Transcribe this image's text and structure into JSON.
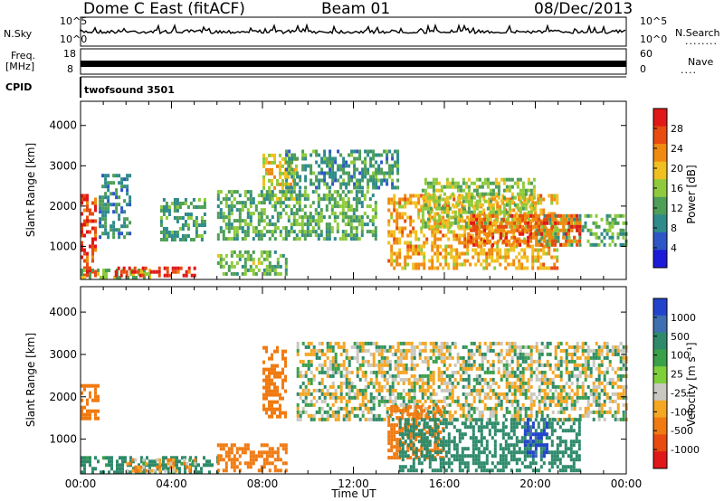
{
  "header": {
    "station": "Dome C East (fitACF)",
    "beam": "Beam 01",
    "date": "08/Dec/2013"
  },
  "strips": {
    "nsky_label": "N.Sky",
    "nsky_ticks": [
      "10^5",
      "10^0"
    ],
    "nsearch_label": "N.Search",
    "nsearch_ticks": [
      "10^5",
      "10^0"
    ],
    "freq_label_1": "Freq.",
    "freq_label_2": "[MHz]",
    "freq_ticks": [
      "18",
      "8"
    ],
    "nave_label": "Nave",
    "nave_ticks": [
      "60",
      "0"
    ],
    "cpid_label": "CPID",
    "cpid_value": "twofsound 3501"
  },
  "chart_data": [
    {
      "type": "heatmap",
      "name": "power",
      "ylabel": "Slant Range [km]",
      "xlabel": "Time UT",
      "x_ticks": [
        "00:00",
        "04:00",
        "08:00",
        "12:00",
        "16:00",
        "20:00",
        "00:00"
      ],
      "y_ticks": [
        "1000",
        "2000",
        "3000",
        "4000"
      ],
      "ylim": [
        180,
        4600
      ],
      "xlim_hours": [
        0,
        24
      ],
      "colorbar": {
        "label": "Power [dB]",
        "ticks": [
          "4",
          "8",
          "12",
          "16",
          "20",
          "24",
          "28"
        ],
        "range": [
          0,
          30
        ],
        "colors": [
          "#1b1bd8",
          "#2e56c6",
          "#2f8a8a",
          "#4e9e58",
          "#8fca3c",
          "#f0c020",
          "#f08a10",
          "#e84a10",
          "#e01818"
        ]
      },
      "regions": [
        {
          "t0": 0.0,
          "t1": 0.6,
          "r0": 300,
          "r1": 2300,
          "value": 26
        },
        {
          "t0": 0.0,
          "t1": 3.0,
          "r0": 250,
          "r1": 450,
          "value": 14
        },
        {
          "t0": 1.5,
          "t1": 5.0,
          "r0": 250,
          "r1": 500,
          "value": 27
        },
        {
          "t0": 0.8,
          "t1": 2.2,
          "r0": 1200,
          "r1": 2800,
          "value": 9
        },
        {
          "t0": 3.5,
          "t1": 5.5,
          "r0": 1200,
          "r1": 2200,
          "value": 11
        },
        {
          "t0": 6.0,
          "t1": 9.0,
          "r0": 300,
          "r1": 900,
          "value": 13
        },
        {
          "t0": 8.0,
          "t1": 9.5,
          "r0": 2200,
          "r1": 3300,
          "value": 18
        },
        {
          "t0": 9.0,
          "t1": 14.0,
          "r0": 2500,
          "r1": 3400,
          "value": 10
        },
        {
          "t0": 6.0,
          "t1": 13.0,
          "r0": 1200,
          "r1": 2400,
          "value": 12
        },
        {
          "t0": 13.5,
          "t1": 21.0,
          "r0": 500,
          "r1": 2300,
          "value": 20
        },
        {
          "t0": 15.0,
          "t1": 20.0,
          "r0": 1500,
          "r1": 2700,
          "value": 15
        },
        {
          "t0": 20.0,
          "t1": 24.0,
          "r0": 1000,
          "r1": 1800,
          "value": 12
        },
        {
          "t0": 17.0,
          "t1": 22.0,
          "r0": 1000,
          "r1": 1800,
          "value": 24
        }
      ]
    },
    {
      "type": "heatmap",
      "name": "velocity",
      "ylabel": "Slant Range [km]",
      "xlabel": "Time UT",
      "x_ticks": [
        "00:00",
        "04:00",
        "08:00",
        "12:00",
        "16:00",
        "20:00",
        "00:00"
      ],
      "y_ticks": [
        "1000",
        "2000",
        "3000",
        "4000"
      ],
      "ylim": [
        180,
        4600
      ],
      "xlim_hours": [
        0,
        24
      ],
      "colorbar": {
        "label": "Velocity [m s⁻¹]",
        "ticks": [
          "1000",
          "500",
          "100",
          "25",
          "-25",
          "-100",
          "-500",
          "-1000"
        ],
        "colors": [
          "#2244cc",
          "#3f6fb0",
          "#2e8a6a",
          "#3aa04a",
          "#7fcf3a",
          "#c8c8c0",
          "#f5a623",
          "#f07a10",
          "#e84a10",
          "#e01818"
        ]
      },
      "regions": [
        {
          "t0": 0.0,
          "t1": 0.8,
          "r0": 1500,
          "r1": 2300,
          "value": -200
        },
        {
          "t0": 0.0,
          "t1": 6.0,
          "r0": 200,
          "r1": 600,
          "value": 150
        },
        {
          "t0": 2.0,
          "t1": 5.0,
          "r0": 250,
          "r1": 550,
          "value": -60
        },
        {
          "t0": 6.0,
          "t1": 9.0,
          "r0": 250,
          "r1": 900,
          "value": -300
        },
        {
          "t0": 8.0,
          "t1": 9.0,
          "r0": 1500,
          "r1": 3200,
          "value": -200
        },
        {
          "t0": 9.5,
          "t1": 24.0,
          "r0": 1500,
          "r1": 3300,
          "value": 0
        },
        {
          "t0": 13.5,
          "t1": 16.0,
          "r0": 600,
          "r1": 1800,
          "value": -200
        },
        {
          "t0": 14.0,
          "t1": 22.0,
          "r0": 300,
          "r1": 1500,
          "value": 200
        },
        {
          "t0": 19.5,
          "t1": 20.5,
          "r0": 600,
          "r1": 1500,
          "value": 800
        }
      ]
    }
  ]
}
